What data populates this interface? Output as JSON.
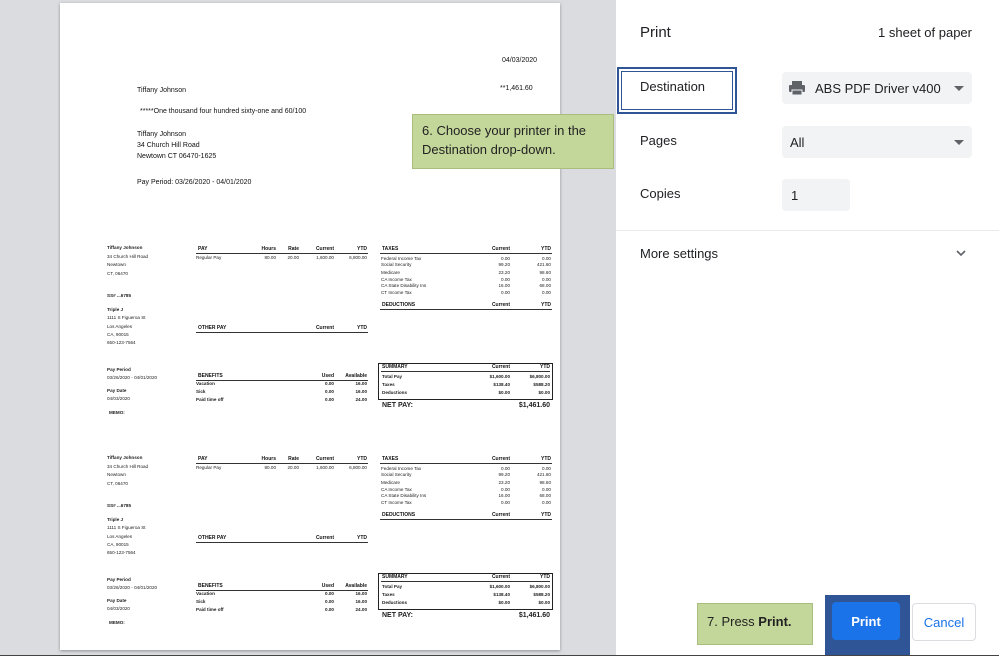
{
  "check": {
    "date": "04/03/2020",
    "payee": "Tiffany Johnson",
    "amount": "**1,461.60",
    "amount_words": "*****One thousand four hundred sixty-one and 60/100",
    "address": [
      "Tiffany Johnson",
      "34 Church Hill Road",
      "Newtown CT 06470-1625"
    ],
    "pay_period": "Pay Period:  03/26/2020 - 04/01/2020"
  },
  "stub": {
    "employee": {
      "name": "Tiffany Johnson",
      "street": "34 Church Hill Road",
      "city": "Newtown",
      "state_zip": "CT, 06470",
      "ssn": "SS# ...6785"
    },
    "employer": {
      "name": "Triple J",
      "street": "1111 S Figueroa St",
      "city": "Los Angeles",
      "state_zip": "CA, 90015",
      "phone": "650-123-7564"
    },
    "pay_period_label": "Pay Period",
    "pay_period": "03/26/2020 - 04/01/2020",
    "pay_date_label": "Pay Date",
    "pay_date": "04/03/2020",
    "memo_label": "MEMO:",
    "pay": {
      "headers": [
        "PAY",
        "Hours",
        "Rate",
        "Current",
        "YTD"
      ],
      "rows": [
        [
          "Regular Pay",
          "80.00",
          "20.00",
          "1,600.00",
          "6,800.00"
        ]
      ]
    },
    "other_pay": {
      "headers": [
        "OTHER PAY",
        "Current",
        "YTD"
      ]
    },
    "benefits": {
      "headers": [
        "BENEFITS",
        "Used",
        "Available"
      ],
      "rows": [
        [
          "Vacation",
          "0.00",
          "16.00"
        ],
        [
          "Sick",
          "0.00",
          "16.00"
        ],
        [
          "Paid time off",
          "0.00",
          "24.00"
        ]
      ]
    },
    "taxes": {
      "headers": [
        "TAXES",
        "Current",
        "YTD"
      ],
      "rows": [
        [
          "Federal Income Tax",
          "0.00",
          "0.00"
        ],
        [
          "Social Security",
          "99.20",
          "421.60"
        ],
        [
          "Medicare",
          "23.20",
          "98.60"
        ],
        [
          "CA Income Tax",
          "0.00",
          "0.00"
        ],
        [
          "CA State Disability Ins",
          "16.00",
          "68.00"
        ],
        [
          "CT Income Tax",
          "0.00",
          "0.00"
        ]
      ]
    },
    "deductions": {
      "headers": [
        "DEDUCTIONS",
        "Current",
        "YTD"
      ]
    },
    "summary": {
      "headers": [
        "SUMMARY",
        "Current",
        "YTD"
      ],
      "rows": [
        [
          "Total Pay",
          "$1,600.00",
          "$6,800.00"
        ],
        [
          "Taxes",
          "$138.40",
          "$588.20"
        ],
        [
          "Deductions",
          "$0.00",
          "$0.00"
        ]
      ],
      "net_pay_label": "NET PAY:",
      "net_pay": "$1,461.60"
    }
  },
  "print_panel": {
    "title": "Print",
    "sheet_count": "1 sheet of paper",
    "destination_label": "Destination",
    "destination_value": "ABS PDF Driver v400",
    "pages_label": "Pages",
    "pages_value": "All",
    "copies_label": "Copies",
    "copies_value": "1",
    "more_settings": "More settings",
    "print_button": "Print",
    "cancel_button": "Cancel",
    "accent_color": "#1a73e8"
  },
  "callouts": {
    "step6": "6. Choose your printer in the Destination drop-down.",
    "step7_prefix": "7. Press ",
    "step7_bold": "Print."
  }
}
